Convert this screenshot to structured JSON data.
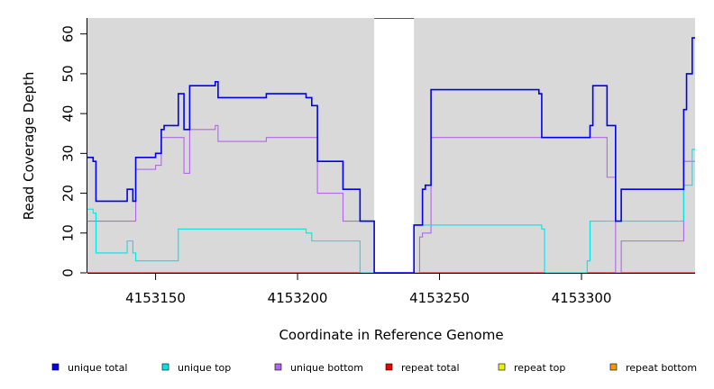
{
  "chart_data": {
    "type": "line",
    "step": true,
    "xlabel": "Coordinate in Reference Genome",
    "ylabel": "Read Coverage Depth",
    "xlim": [
      4153126,
      4153340
    ],
    "ylim": [
      0,
      64
    ],
    "x_ticks": [
      4153150,
      4153200,
      4153250,
      4153300
    ],
    "y_ticks": [
      0,
      10,
      20,
      30,
      40,
      50,
      60
    ],
    "x_tick_labels": [
      "4153150",
      "4153200",
      "4153250",
      "4153300"
    ],
    "y_tick_labels": [
      "0",
      "10",
      "20",
      "30",
      "40",
      "50",
      "60"
    ],
    "background_color": "#d9d9d9",
    "gap_region": [
      4153227,
      4153241
    ],
    "gap_color": "#ffffff",
    "legend_position": "bottom",
    "series": [
      {
        "name": "unique total",
        "color": "#0000ee",
        "points": [
          [
            4153126,
            29
          ],
          [
            4153128,
            28
          ],
          [
            4153129,
            18
          ],
          [
            4153140,
            21
          ],
          [
            4153142,
            18
          ],
          [
            4153143,
            29
          ],
          [
            4153150,
            30
          ],
          [
            4153152,
            36
          ],
          [
            4153153,
            37
          ],
          [
            4153158,
            45
          ],
          [
            4153160,
            36
          ],
          [
            4153162,
            47
          ],
          [
            4153171,
            48
          ],
          [
            4153172,
            44
          ],
          [
            4153189,
            45
          ],
          [
            4153203,
            44
          ],
          [
            4153205,
            42
          ],
          [
            4153207,
            28
          ],
          [
            4153216,
            21
          ],
          [
            4153222,
            13
          ],
          [
            4153227,
            0
          ],
          [
            4153241,
            12
          ],
          [
            4153244,
            21
          ],
          [
            4153245,
            22
          ],
          [
            4153247,
            46
          ],
          [
            4153285,
            45
          ],
          [
            4153286,
            34
          ],
          [
            4153303,
            37
          ],
          [
            4153304,
            47
          ],
          [
            4153309,
            37
          ],
          [
            4153312,
            13
          ],
          [
            4153314,
            21
          ],
          [
            4153336,
            41
          ],
          [
            4153337,
            50
          ],
          [
            4153339,
            59
          ],
          [
            4153340,
            59
          ]
        ]
      },
      {
        "name": "unique top",
        "color": "#00e5e5",
        "points": [
          [
            4153126,
            16
          ],
          [
            4153128,
            15
          ],
          [
            4153129,
            5
          ],
          [
            4153140,
            8
          ],
          [
            4153142,
            5
          ],
          [
            4153143,
            3
          ],
          [
            4153158,
            11
          ],
          [
            4153203,
            10
          ],
          [
            4153205,
            8
          ],
          [
            4153222,
            0
          ],
          [
            4153241,
            12
          ],
          [
            4153286,
            11
          ],
          [
            4153287,
            0
          ],
          [
            4153302,
            3
          ],
          [
            4153303,
            13
          ],
          [
            4153336,
            22
          ],
          [
            4153339,
            31
          ],
          [
            4153340,
            31
          ]
        ]
      },
      {
        "name": "unique bottom",
        "color": "#b266e8",
        "points": [
          [
            4153126,
            13
          ],
          [
            4153143,
            26
          ],
          [
            4153150,
            27
          ],
          [
            4153152,
            34
          ],
          [
            4153160,
            25
          ],
          [
            4153162,
            36
          ],
          [
            4153171,
            37
          ],
          [
            4153172,
            33
          ],
          [
            4153189,
            34
          ],
          [
            4153207,
            20
          ],
          [
            4153216,
            13
          ],
          [
            4153222,
            13
          ],
          [
            4153227,
            0
          ],
          [
            4153243,
            9
          ],
          [
            4153244,
            10
          ],
          [
            4153247,
            34
          ],
          [
            4153309,
            24
          ],
          [
            4153312,
            0
          ],
          [
            4153314,
            8
          ],
          [
            4153336,
            28
          ],
          [
            4153340,
            28
          ]
        ]
      },
      {
        "name": "repeat total",
        "color": "#ee0000",
        "points": [
          [
            4153126,
            0
          ],
          [
            4153340,
            0
          ]
        ]
      },
      {
        "name": "repeat top",
        "color": "#eeee00",
        "points": [
          [
            4153126,
            0
          ],
          [
            4153340,
            0
          ]
        ]
      },
      {
        "name": "repeat bottom",
        "color": "#ee9a00",
        "points": [
          [
            4153126,
            0
          ],
          [
            4153340,
            0
          ]
        ]
      }
    ]
  }
}
